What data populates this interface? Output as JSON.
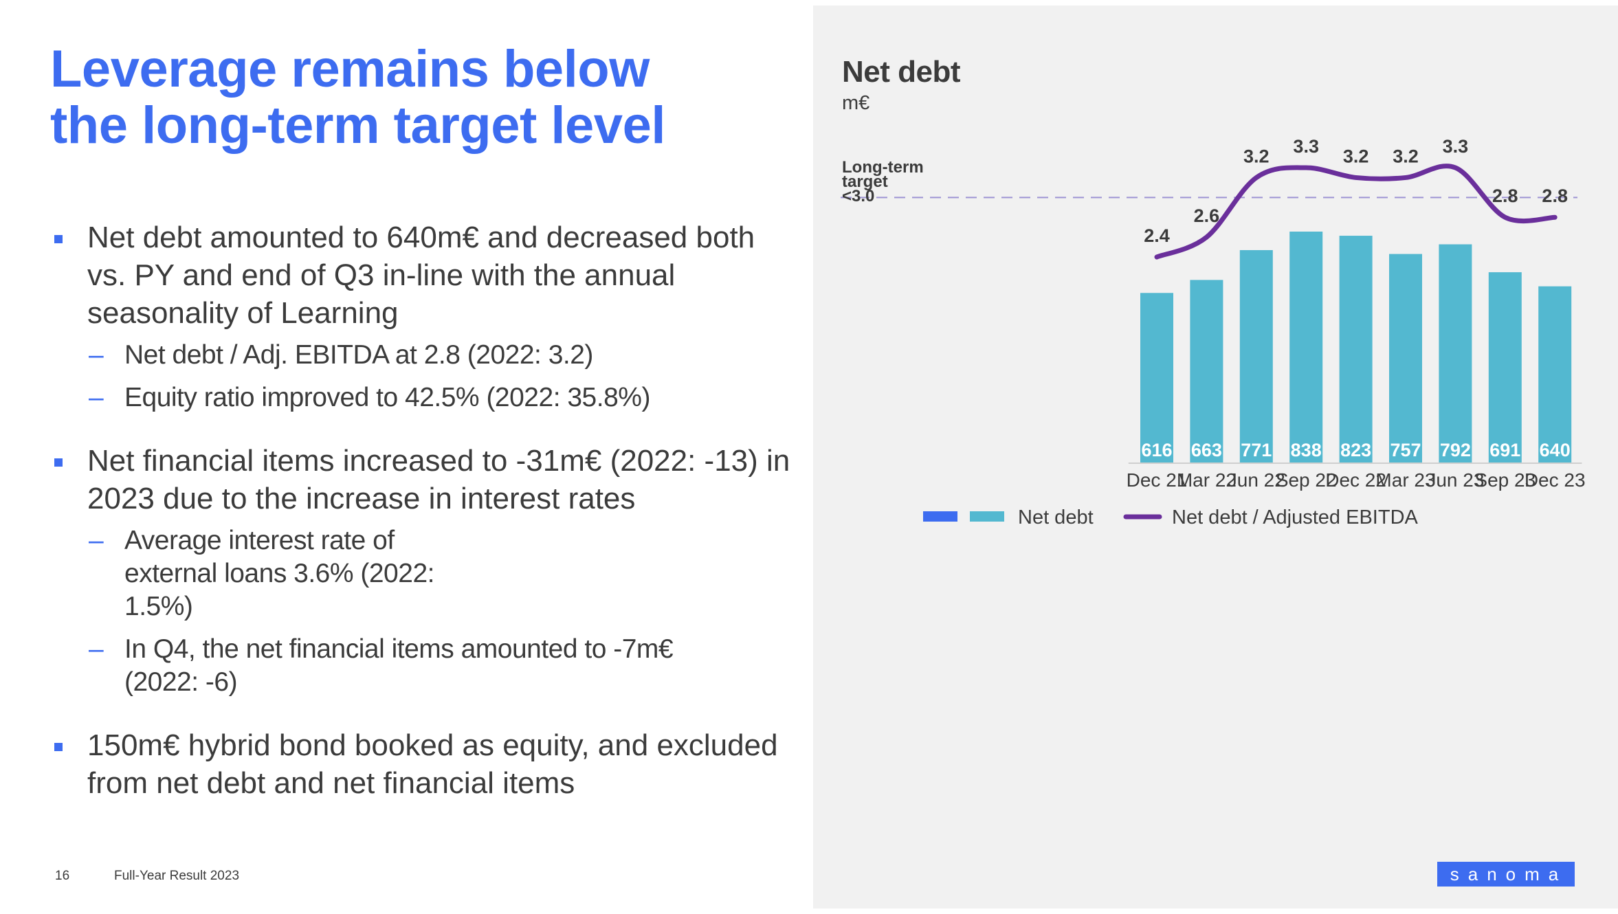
{
  "slide": {
    "title_line1": "Leverage remains below",
    "title_line2": "the long-term target level",
    "page_number": "16",
    "footer": "Full-Year Result 2023",
    "logo": "sanoma",
    "colors": {
      "accent": "#3d6cf0",
      "bar": "#53b8d0",
      "line": "#6a2f9b",
      "legend_blue": "#3d6cf0"
    }
  },
  "bullets": [
    {
      "text": "Net debt amounted to 640m€ and decreased both vs. PY and end of Q3 in-line with the annual seasonality of Learning",
      "subs": [
        "Net debt / Adj. EBITDA at 2.8 (2022: 3.2)",
        "Equity ratio improved to 42.5% (2022: 35.8%)"
      ]
    },
    {
      "text": "Net financial items increased to -31m€ (2022: -13) in 2023 due to the increase in interest rates",
      "subs": [
        "Average interest rate of external loans 3.6% (2022: 1.5%)",
        "In Q4, the net financial items amounted to -7m€ (2022: -6)"
      ]
    },
    {
      "text": "150m€ hybrid bond booked as equity, and excluded from net debt and net financial items",
      "subs": []
    }
  ],
  "chart_data": {
    "type": "bar",
    "title": "Net debt",
    "subtitle": "m€",
    "categories": [
      "Dec 21",
      "Mar 22",
      "Jun  22",
      "Sep 22",
      "Dec 22",
      "Mar 23",
      "Jun 23",
      "Sep 23",
      "Dec 23"
    ],
    "series": [
      {
        "name": "Net debt",
        "type": "bar",
        "values": [
          616,
          663,
          771,
          838,
          823,
          757,
          792,
          691,
          640
        ]
      },
      {
        "name": "Net debt / Adjusted EBITDA",
        "type": "line",
        "values": [
          2.4,
          2.6,
          3.2,
          3.3,
          3.2,
          3.2,
          3.3,
          2.8,
          2.8
        ]
      }
    ],
    "bar_labels": [
      "616",
      "663",
      "771",
      "838",
      "823",
      "757",
      "792",
      "691",
      "640"
    ],
    "line_labels": [
      "2.4",
      "2.6",
      "3.2",
      "3.3",
      "3.2",
      "3.2",
      "3.3",
      "2.8",
      "2.8"
    ],
    "target": {
      "value": 3.0,
      "label_lines": [
        "Long-term",
        "target",
        "<3.0"
      ]
    },
    "legend": [
      "Net debt",
      "Net debt / Adjusted EBITDA"
    ],
    "legend_position": "bottom",
    "ylim_bars": [
      0,
      838
    ],
    "grid": false
  }
}
